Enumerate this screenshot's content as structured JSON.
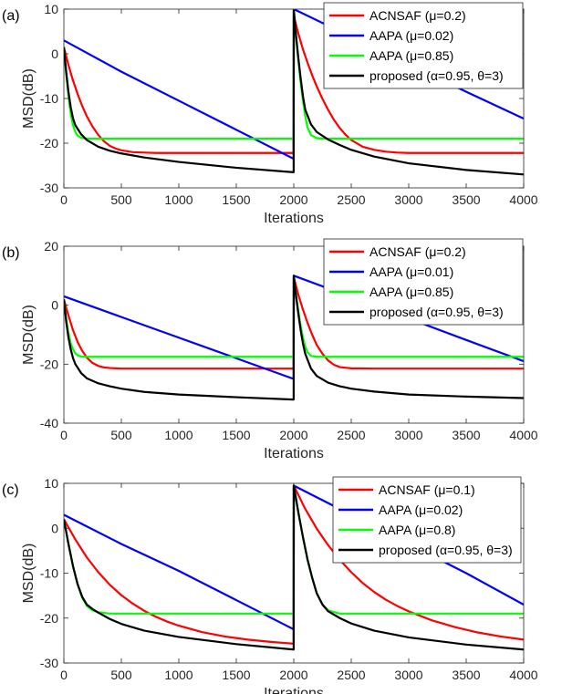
{
  "chart_data": [
    {
      "type": "line",
      "panel_label": "(a)",
      "xlabel": "Iterations",
      "ylabel": "MSD(dB)",
      "xlim": [
        0,
        4000
      ],
      "ylim": [
        -30,
        10
      ],
      "xticks": [
        0,
        500,
        1000,
        1500,
        2000,
        2500,
        3000,
        3500,
        4000
      ],
      "yticks": [
        10,
        0,
        -10,
        -20,
        -30
      ],
      "grid": false,
      "legend_position": "top-right",
      "series": [
        {
          "name": "ACNSAF",
          "param": "(μ=0.2)",
          "color": "#ff0000",
          "x": [
            0,
            40,
            80,
            120,
            160,
            200,
            250,
            300,
            350,
            400,
            450,
            500,
            600,
            700,
            800,
            900,
            1000,
            1200,
            1400,
            1600,
            1800,
            1999,
            2000,
            2040,
            2080,
            2120,
            2160,
            2200,
            2250,
            2300,
            2350,
            2400,
            2450,
            2500,
            2600,
            2700,
            2800,
            2900,
            3000,
            3200,
            3400,
            3600,
            3800,
            4000
          ],
          "y": [
            1.5,
            -2.5,
            -6.0,
            -9.0,
            -11.7,
            -14.0,
            -16.3,
            -18.2,
            -19.6,
            -20.6,
            -21.2,
            -21.6,
            -22.0,
            -22.1,
            -22.2,
            -22.2,
            -22.2,
            -22.2,
            -22.2,
            -22.2,
            -22.2,
            -22.2,
            8.5,
            4.5,
            1.0,
            -2.0,
            -4.8,
            -7.3,
            -10.1,
            -12.6,
            -14.8,
            -16.6,
            -18.1,
            -19.3,
            -20.8,
            -21.5,
            -21.9,
            -22.1,
            -22.2,
            -22.2,
            -22.2,
            -22.2,
            -22.2,
            -22.2
          ]
        },
        {
          "name": "AAPA",
          "param": "(μ=0.02)",
          "color": "#0000ff",
          "x": [
            0,
            500,
            1000,
            1500,
            1999,
            2000,
            2500,
            3000,
            3500,
            4000
          ],
          "y": [
            3.0,
            -4.0,
            -10.5,
            -17.0,
            -23.5,
            10.0,
            3.8,
            -2.3,
            -8.5,
            -14.5
          ]
        },
        {
          "name": "AAPA",
          "param": "(μ=0.85)",
          "color": "#00ff00",
          "x": [
            0,
            20,
            40,
            60,
            80,
            100,
            120,
            150,
            200,
            300,
            500,
            1000,
            1500,
            1999,
            2000,
            2020,
            2040,
            2060,
            2080,
            2100,
            2120,
            2150,
            2200,
            2300,
            2500,
            3000,
            3500,
            4000
          ],
          "y": [
            1.5,
            -4.5,
            -9.5,
            -13.5,
            -16.0,
            -17.5,
            -18.3,
            -18.8,
            -19.0,
            -19.0,
            -19.0,
            -19.0,
            -19.0,
            -19.0,
            9.5,
            3.5,
            -1.5,
            -6.5,
            -10.5,
            -14.0,
            -16.5,
            -18.2,
            -18.9,
            -19.0,
            -19.0,
            -19.0,
            -19.0,
            -19.0
          ]
        },
        {
          "name": "proposed",
          "param": "(α=0.95, θ=3)",
          "color": "#000000",
          "x": [
            0,
            20,
            40,
            60,
            80,
            100,
            150,
            200,
            300,
            400,
            500,
            700,
            1000,
            1500,
            1999,
            2000,
            2020,
            2040,
            2060,
            2080,
            2100,
            2150,
            2200,
            2300,
            2400,
            2500,
            2700,
            3000,
            3500,
            4000
          ],
          "y": [
            1.5,
            -4.0,
            -8.5,
            -12.0,
            -14.5,
            -16.0,
            -18.0,
            -19.3,
            -20.8,
            -21.7,
            -22.3,
            -23.2,
            -24.2,
            -25.5,
            -26.5,
            10.0,
            4.0,
            -1.0,
            -5.5,
            -9.5,
            -12.5,
            -15.8,
            -17.5,
            -19.2,
            -20.4,
            -21.5,
            -23.0,
            -24.5,
            -26.0,
            -27.0
          ]
        }
      ]
    },
    {
      "type": "line",
      "panel_label": "(b)",
      "xlabel": "Iterations",
      "ylabel": "MSD(dB)",
      "xlim": [
        0,
        4000
      ],
      "ylim": [
        -40,
        20
      ],
      "xticks": [
        0,
        500,
        1000,
        1500,
        2000,
        2500,
        3000,
        3500,
        4000
      ],
      "yticks": [
        20,
        0,
        -20,
        -40
      ],
      "grid": false,
      "legend_position": "top-right",
      "series": [
        {
          "name": "ACNSAF",
          "param": "(μ=0.2)",
          "color": "#ff0000",
          "x": [
            0,
            40,
            80,
            120,
            160,
            200,
            250,
            300,
            350,
            400,
            500,
            700,
            1000,
            1500,
            1999,
            2000,
            2040,
            2080,
            2120,
            2160,
            2200,
            2250,
            2300,
            2350,
            2400,
            2500,
            2700,
            3000,
            3500,
            4000
          ],
          "y": [
            2.0,
            -3.5,
            -8.5,
            -12.5,
            -15.5,
            -17.8,
            -19.6,
            -20.6,
            -21.1,
            -21.3,
            -21.5,
            -21.5,
            -21.5,
            -21.5,
            -21.5,
            9.5,
            3.5,
            -1.5,
            -6.0,
            -10.0,
            -13.5,
            -16.5,
            -18.8,
            -20.2,
            -21.0,
            -21.4,
            -21.5,
            -21.5,
            -21.5,
            -21.5
          ]
        },
        {
          "name": "AAPA",
          "param": "(μ=0.01)",
          "color": "#0000ff",
          "x": [
            0,
            500,
            1000,
            1500,
            1999,
            2000,
            2500,
            3000,
            3500,
            4000
          ],
          "y": [
            3.0,
            -4.0,
            -11.0,
            -18.0,
            -25.0,
            10.0,
            2.8,
            -4.5,
            -11.8,
            -19.0
          ]
        },
        {
          "name": "AAPA",
          "param": "(μ=0.85)",
          "color": "#00ff00",
          "x": [
            0,
            20,
            40,
            60,
            80,
            100,
            120,
            150,
            200,
            300,
            500,
            1000,
            1500,
            1999,
            2000,
            2020,
            2040,
            2060,
            2080,
            2100,
            2120,
            2150,
            2200,
            2300,
            2500,
            3000,
            3500,
            4000
          ],
          "y": [
            2.0,
            -4.5,
            -9.5,
            -13.0,
            -15.0,
            -16.3,
            -17.0,
            -17.4,
            -17.5,
            -17.5,
            -17.5,
            -17.5,
            -17.5,
            -17.5,
            9.5,
            3.5,
            -2.0,
            -7.0,
            -11.0,
            -14.0,
            -16.0,
            -17.2,
            -17.5,
            -17.5,
            -17.5,
            -17.5,
            -17.5,
            -17.5
          ]
        },
        {
          "name": "proposed",
          "param": "(α=0.95, θ=3)",
          "color": "#000000",
          "x": [
            0,
            20,
            40,
            60,
            80,
            100,
            150,
            200,
            300,
            400,
            500,
            700,
            1000,
            1500,
            1999,
            2000,
            2020,
            2040,
            2060,
            2080,
            2100,
            2150,
            2200,
            2300,
            2400,
            2500,
            2700,
            3000,
            3500,
            4000
          ],
          "y": [
            2.0,
            -5.5,
            -11.0,
            -15.0,
            -18.0,
            -20.0,
            -23.0,
            -24.8,
            -26.5,
            -27.5,
            -28.3,
            -29.4,
            -30.3,
            -31.2,
            -32.0,
            10.0,
            3.0,
            -3.0,
            -8.5,
            -13.0,
            -16.5,
            -21.5,
            -24.0,
            -26.3,
            -27.5,
            -28.3,
            -29.3,
            -30.3,
            -31.0,
            -31.5
          ]
        }
      ]
    },
    {
      "type": "line",
      "panel_label": "(c)",
      "xlabel": "Iterations",
      "ylabel": "MSD(dB)",
      "xlim": [
        0,
        4000
      ],
      "ylim": [
        -30,
        10
      ],
      "xticks": [
        0,
        500,
        1000,
        1500,
        2000,
        2500,
        3000,
        3500,
        4000
      ],
      "yticks": [
        10,
        0,
        -10,
        -20,
        -30
      ],
      "grid": false,
      "legend_position": "top-right",
      "series": [
        {
          "name": "ACNSAF",
          "param": "(μ=0.1)",
          "color": "#ff0000",
          "x": [
            0,
            100,
            200,
            300,
            400,
            500,
            600,
            700,
            800,
            900,
            1000,
            1200,
            1400,
            1600,
            1800,
            1999,
            2000,
            2100,
            2200,
            2300,
            2400,
            2500,
            2600,
            2700,
            2800,
            2900,
            3000,
            3200,
            3400,
            3600,
            3800,
            4000
          ],
          "y": [
            2.0,
            -2.5,
            -6.5,
            -9.8,
            -12.6,
            -14.9,
            -16.8,
            -18.4,
            -19.7,
            -20.8,
            -21.7,
            -23.1,
            -24.1,
            -24.8,
            -25.3,
            -25.7,
            9.5,
            4.3,
            -0.1,
            -3.8,
            -7.0,
            -9.8,
            -12.2,
            -14.2,
            -15.9,
            -17.3,
            -18.5,
            -20.5,
            -22.0,
            -23.2,
            -24.1,
            -24.8
          ]
        },
        {
          "name": "AAPA",
          "param": "(μ=0.02)",
          "color": "#0000ff",
          "x": [
            0,
            500,
            1000,
            1500,
            1999,
            2000,
            2500,
            3000,
            3500,
            4000
          ],
          "y": [
            3.0,
            -3.5,
            -9.5,
            -16.0,
            -22.5,
            9.5,
            3.0,
            -3.5,
            -10.0,
            -17.0
          ]
        },
        {
          "name": "AAPA",
          "param": "(μ=0.8)",
          "color": "#00ff00",
          "x": [
            0,
            40,
            80,
            120,
            160,
            200,
            250,
            300,
            400,
            500,
            1000,
            1500,
            1999,
            2000,
            2040,
            2080,
            2120,
            2160,
            2200,
            2250,
            2300,
            2400,
            2500,
            3000,
            3500,
            4000
          ],
          "y": [
            2.0,
            -3.5,
            -8.5,
            -12.5,
            -15.5,
            -17.3,
            -18.3,
            -18.7,
            -19.0,
            -19.0,
            -19.0,
            -19.0,
            -19.0,
            9.5,
            3.5,
            -2.0,
            -7.0,
            -11.0,
            -14.5,
            -17.0,
            -18.3,
            -19.0,
            -19.0,
            -19.0,
            -19.0,
            -19.0
          ]
        },
        {
          "name": "proposed",
          "param": "(α=0.95, θ=3)",
          "color": "#000000",
          "x": [
            0,
            40,
            80,
            120,
            160,
            200,
            250,
            300,
            400,
            500,
            700,
            1000,
            1500,
            1999,
            2000,
            2040,
            2080,
            2120,
            2160,
            2200,
            2250,
            2300,
            2400,
            2500,
            2700,
            3000,
            3500,
            4000
          ],
          "y": [
            2.0,
            -3.5,
            -8.5,
            -12.5,
            -15.3,
            -17.0,
            -18.0,
            -18.8,
            -20.2,
            -21.3,
            -22.8,
            -24.2,
            -25.8,
            -27.0,
            9.5,
            3.5,
            -2.0,
            -7.0,
            -11.0,
            -14.5,
            -17.0,
            -18.5,
            -20.0,
            -21.2,
            -22.8,
            -24.3,
            -25.9,
            -27.0
          ]
        }
      ]
    }
  ]
}
